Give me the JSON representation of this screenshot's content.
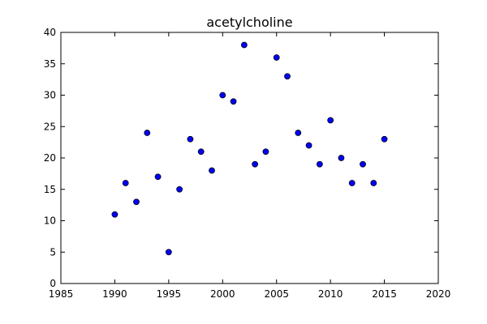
{
  "chart_data": {
    "type": "scatter",
    "title": "acetylcholine",
    "xlabel": "",
    "ylabel": "",
    "xlim": [
      1985,
      2020
    ],
    "ylim": [
      0,
      40
    ],
    "xticks": [
      1985,
      1990,
      1995,
      2000,
      2005,
      2010,
      2015,
      2020
    ],
    "yticks": [
      0,
      5,
      10,
      15,
      20,
      25,
      30,
      35,
      40
    ],
    "grid": false,
    "marker_color": "#0000ff",
    "series": [
      {
        "x": [
          1990,
          1991,
          1992,
          1993,
          1994,
          1995,
          1996,
          1997,
          1998,
          1999,
          2000,
          2001,
          2002,
          2003,
          2004,
          2005,
          2006,
          2007,
          2008,
          2009,
          2010,
          2011,
          2012,
          2013,
          2014,
          2015
        ],
        "y": [
          11,
          16,
          13,
          24,
          17,
          5,
          15,
          23,
          21,
          18,
          30,
          29,
          38,
          19,
          21,
          36,
          33,
          24,
          22,
          19,
          26,
          20,
          16,
          19,
          16,
          23
        ]
      }
    ]
  }
}
